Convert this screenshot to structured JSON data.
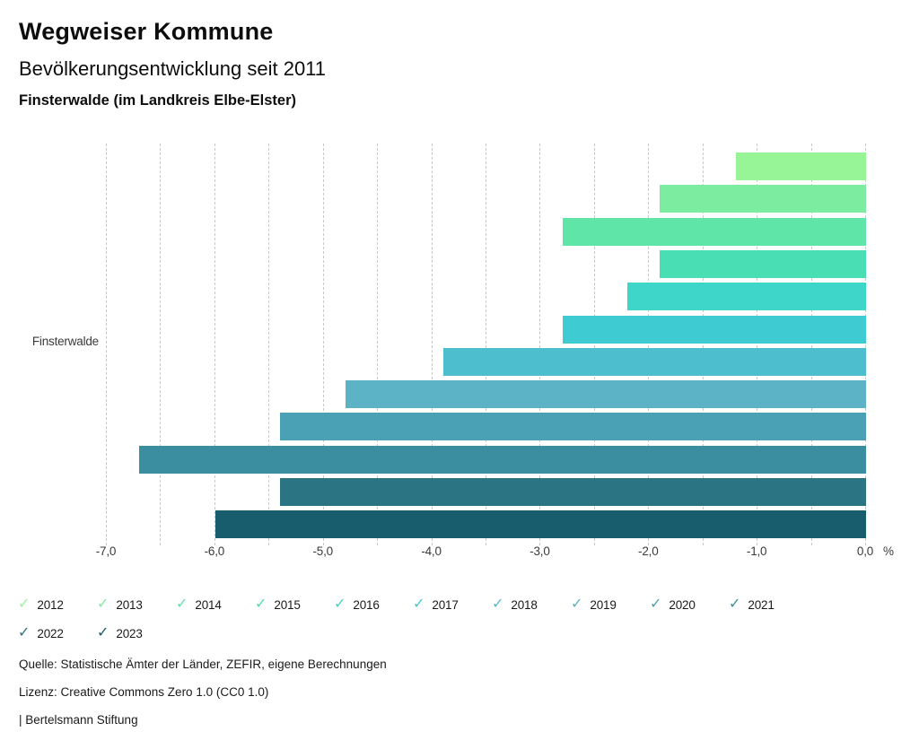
{
  "header": {
    "title": "Wegweiser Kommune",
    "subtitle": "Bevölkerungsentwicklung seit 2011",
    "region": "Finsterwalde (im Landkreis Elbe-Elster)"
  },
  "chart_data": {
    "type": "bar",
    "orientation": "horizontal",
    "title": "Bevölkerungsentwicklung seit 2011",
    "category_label": "Finsterwalde",
    "unit": "%",
    "xlim": [
      -7.0,
      0.0
    ],
    "gridline_step": 0.5,
    "grid": "dashed-vertical",
    "x_ticks": [
      {
        "value": -7,
        "label": "-7,0"
      },
      {
        "value": -6,
        "label": "-6,0"
      },
      {
        "value": -5,
        "label": "-5,0"
      },
      {
        "value": -4,
        "label": "-4,0"
      },
      {
        "value": -3,
        "label": "-3,0"
      },
      {
        "value": -2,
        "label": "-2,0"
      },
      {
        "value": -1,
        "label": "-1,0"
      },
      {
        "value": 0,
        "label": "0,0"
      }
    ],
    "series": [
      {
        "year": "2012",
        "value": -1.2,
        "color": "#98F597"
      },
      {
        "year": "2013",
        "value": -1.9,
        "color": "#7CEDA0"
      },
      {
        "year": "2014",
        "value": -2.8,
        "color": "#5FE5A8"
      },
      {
        "year": "2015",
        "value": -1.9,
        "color": "#49DEB3"
      },
      {
        "year": "2016",
        "value": -2.2,
        "color": "#3ED6C8"
      },
      {
        "year": "2017",
        "value": -2.8,
        "color": "#3ECBD2"
      },
      {
        "year": "2018",
        "value": -3.9,
        "color": "#4CBECD"
      },
      {
        "year": "2019",
        "value": -4.8,
        "color": "#5CB3C6"
      },
      {
        "year": "2020",
        "value": -5.4,
        "color": "#4AA1B5"
      },
      {
        "year": "2021",
        "value": -6.7,
        "color": "#3A8EA0"
      },
      {
        "year": "2022",
        "value": -5.4,
        "color": "#2B7484"
      },
      {
        "year": "2023",
        "value": -6.0,
        "color": "#175D6E"
      }
    ],
    "legend_position": "bottom",
    "legend_items_per_row": 10,
    "legend_check_icon": "check-icon"
  },
  "footer": {
    "source": "Quelle: Statistische Ämter der Länder, ZEFIR, eigene Berechnungen",
    "license": "Lizenz: Creative Commons Zero 1.0 (CC0 1.0)",
    "attribution": "| Bertelsmann Stiftung"
  }
}
